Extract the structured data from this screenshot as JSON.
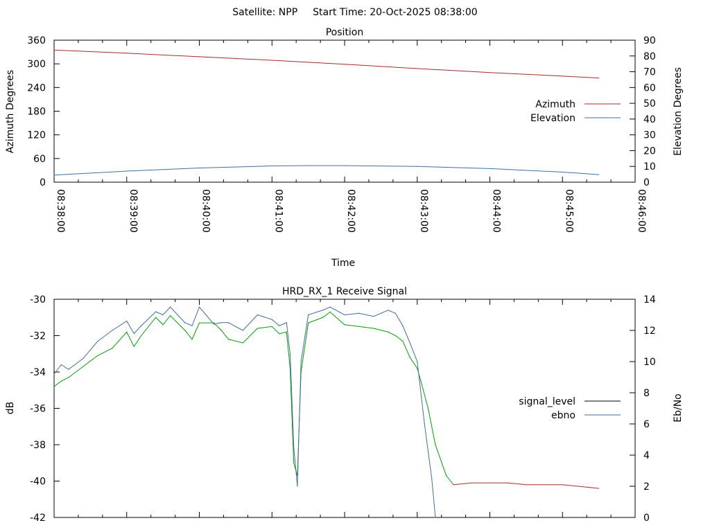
{
  "figure": {
    "satellite_label": "Satellite: NPP",
    "start_time_label": "Start Time: 20-Oct-2025 08:38:00"
  },
  "chart_data": [
    {
      "type": "line",
      "title": "Position",
      "xlabel": "Time",
      "ylabel": "Azimuth Degrees",
      "y2label": "Elevation Degrees",
      "x_range": [
        "08:38:00",
        "08:46:00"
      ],
      "x_ticks": [
        "08:38:00",
        "08:39:00",
        "08:40:00",
        "08:41:00",
        "08:42:00",
        "08:43:00",
        "08:44:00",
        "08:45:00",
        "08:46:00"
      ],
      "ylim": [
        0,
        360
      ],
      "y_ticks": [
        "0",
        "60",
        "120",
        "180",
        "240",
        "300",
        "360"
      ],
      "y2lim": [
        0,
        90
      ],
      "y2_ticks": [
        "0",
        "10",
        "20",
        "30",
        "40",
        "50",
        "60",
        "70",
        "80",
        "90"
      ],
      "legend_position": "right",
      "grid": false,
      "series": [
        {
          "name": "Azimuth",
          "axis": "left",
          "color": "#a52a2a",
          "x": [
            "08:38:00",
            "08:39:00",
            "08:40:00",
            "08:41:00",
            "08:42:00",
            "08:43:00",
            "08:44:00",
            "08:45:00",
            "08:45:30"
          ],
          "y": [
            335,
            327,
            318,
            309,
            299,
            288,
            278,
            269,
            264
          ]
        },
        {
          "name": "Elevation",
          "axis": "right",
          "color": "#3e6e9e",
          "x": [
            "08:38:00",
            "08:39:00",
            "08:40:00",
            "08:41:00",
            "08:41:30",
            "08:42:00",
            "08:43:00",
            "08:44:00",
            "08:45:00",
            "08:45:30"
          ],
          "y": [
            4.5,
            7,
            9,
            10.3,
            10.5,
            10.5,
            10,
            8.6,
            6.4,
            4.8
          ]
        }
      ]
    },
    {
      "type": "line",
      "title": "HRD_RX_1 Receive Signal",
      "xlabel": "",
      "ylabel": "dB",
      "y2label": "Eb/No",
      "x_range": [
        "08:38:00",
        "08:46:00"
      ],
      "ylim": [
        -42,
        -30
      ],
      "y_ticks": [
        "-42",
        "-40",
        "-38",
        "-36",
        "-34",
        "-32",
        "-30"
      ],
      "y2lim": [
        0,
        14
      ],
      "y2_ticks": [
        "0",
        "2",
        "4",
        "6",
        "8",
        "10",
        "12",
        "14"
      ],
      "legend_position": "right",
      "grid": false,
      "series": [
        {
          "name": "signal_level",
          "axis": "left",
          "legend_color": "#000000",
          "color": "#00a000",
          "low_signal_color": "#a52a2a",
          "x": [
            "08:38:00",
            "08:38:06",
            "08:38:12",
            "08:38:24",
            "08:38:36",
            "08:38:48",
            "08:39:00",
            "08:39:06",
            "08:39:12",
            "08:39:24",
            "08:39:30",
            "08:39:36",
            "08:39:48",
            "08:39:54",
            "08:40:00",
            "08:40:12",
            "08:40:18",
            "08:40:24",
            "08:40:36",
            "08:40:48",
            "08:41:00",
            "08:41:06",
            "08:41:12",
            "08:41:15",
            "08:41:18",
            "08:41:21",
            "08:41:24",
            "08:41:30",
            "08:41:42",
            "08:41:48",
            "08:42:00",
            "08:42:12",
            "08:42:24",
            "08:42:36",
            "08:42:42",
            "08:42:48",
            "08:42:54",
            "08:43:00",
            "08:43:03",
            "08:43:09",
            "08:43:15",
            "08:43:24",
            "08:43:30",
            "08:43:45",
            "08:44:00",
            "08:44:15",
            "08:44:30",
            "08:44:45",
            "08:45:00",
            "08:45:15",
            "08:45:30"
          ],
          "y": [
            -34.8,
            -34.5,
            -34.3,
            -33.7,
            -33.1,
            -32.7,
            -31.8,
            -32.6,
            -32.0,
            -31.0,
            -31.4,
            -30.9,
            -31.7,
            -32.2,
            -31.3,
            -31.3,
            -31.7,
            -32.2,
            -32.4,
            -31.6,
            -31.5,
            -31.9,
            -31.8,
            -33.8,
            -39.0,
            -39.7,
            -34.0,
            -31.3,
            -31.0,
            -30.7,
            -31.4,
            -31.5,
            -31.6,
            -31.8,
            -32.0,
            -32.3,
            -33.2,
            -33.8,
            -34.5,
            -36.0,
            -38.0,
            -39.7,
            -40.2,
            -40.1,
            -40.1,
            -40.1,
            -40.2,
            -40.2,
            -40.2,
            -40.3,
            -40.4
          ]
        },
        {
          "name": "ebno",
          "axis": "right",
          "color": "#3e6e9e",
          "x": [
            "08:38:00",
            "08:38:06",
            "08:38:12",
            "08:38:24",
            "08:38:36",
            "08:38:48",
            "08:39:00",
            "08:39:06",
            "08:39:12",
            "08:39:24",
            "08:39:30",
            "08:39:36",
            "08:39:48",
            "08:39:54",
            "08:40:00",
            "08:40:12",
            "08:40:18",
            "08:40:24",
            "08:40:36",
            "08:40:48",
            "08:41:00",
            "08:41:06",
            "08:41:12",
            "08:41:15",
            "08:41:18",
            "08:41:21",
            "08:41:24",
            "08:41:30",
            "08:41:42",
            "08:41:48",
            "08:42:00",
            "08:42:12",
            "08:42:24",
            "08:42:36",
            "08:42:42",
            "08:42:48",
            "08:42:54",
            "08:43:00",
            "08:43:06",
            "08:43:12",
            "08:43:15"
          ],
          "y": [
            9.2,
            9.8,
            9.5,
            10.2,
            11.3,
            12.0,
            12.6,
            11.8,
            12.3,
            13.2,
            13.0,
            13.5,
            12.5,
            12.3,
            13.5,
            12.4,
            12.5,
            12.5,
            12.0,
            13.0,
            12.7,
            12.3,
            12.5,
            10.5,
            4.5,
            2.0,
            10.0,
            13.0,
            13.3,
            13.5,
            13.0,
            13.1,
            12.9,
            13.3,
            13.1,
            12.3,
            11.2,
            10.0,
            6.0,
            2.5,
            0
          ]
        }
      ]
    }
  ]
}
